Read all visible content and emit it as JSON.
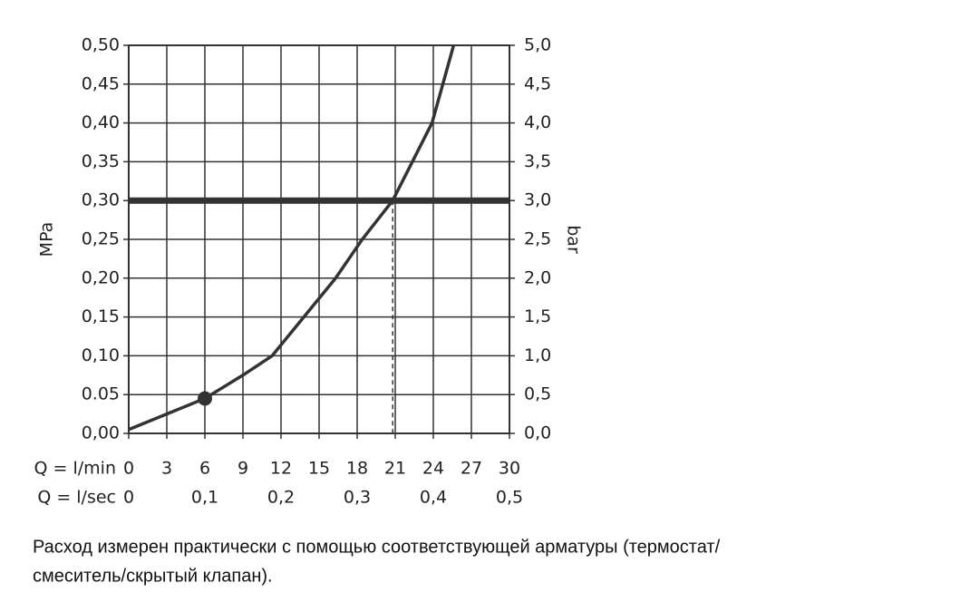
{
  "chart_data": {
    "type": "line",
    "ylabel": "MPa",
    "y2label": "bar",
    "xlabel": "Q = l/min",
    "x2label": "Q = l/sec",
    "xlim": [
      0,
      30
    ],
    "xticks": [
      0,
      3,
      6,
      9,
      12,
      15,
      18,
      21,
      24,
      27,
      30
    ],
    "x2lim": [
      0,
      0.5
    ],
    "x2ticks": [
      0,
      {
        "value": 0.1,
        "label": "0,1"
      },
      {
        "value": 0.2,
        "label": "0,2"
      },
      {
        "value": 0.3,
        "label": "0,3"
      },
      {
        "value": 0.4,
        "label": "0,4"
      },
      {
        "value": 0.5,
        "label": "0,5"
      }
    ],
    "ylim": [
      0,
      0.5
    ],
    "yticks": [
      {
        "value": 0,
        "label": "0,00"
      },
      {
        "value": 0.05,
        "label": "0.05"
      },
      {
        "value": 0.1,
        "label": "0,10"
      },
      {
        "value": 0.15,
        "label": "0,15"
      },
      {
        "value": 0.2,
        "label": "0,20"
      },
      {
        "value": 0.25,
        "label": "0,25"
      },
      {
        "value": 0.3,
        "label": "0,30"
      },
      {
        "value": 0.35,
        "label": "0,35"
      },
      {
        "value": 0.4,
        "label": "0,40"
      },
      {
        "value": 0.45,
        "label": "0,45"
      },
      {
        "value": 0.5,
        "label": "0,50"
      }
    ],
    "y2lim": [
      0,
      5
    ],
    "y2ticks": [
      {
        "value": 0,
        "label": "0,0"
      },
      {
        "value": 0.5,
        "label": "0,5"
      },
      {
        "value": 1,
        "label": "1,0"
      },
      {
        "value": 1.5,
        "label": "1,5"
      },
      {
        "value": 2,
        "label": "2,0"
      },
      {
        "value": 2.5,
        "label": "2,5"
      },
      {
        "value": 3,
        "label": "3,0"
      },
      {
        "value": 3.5,
        "label": "3,5"
      },
      {
        "value": 4,
        "label": "4,0"
      },
      {
        "value": 4.5,
        "label": "4,5"
      },
      {
        "value": 5,
        "label": "5,0"
      }
    ],
    "grid": true,
    "series": [
      {
        "color": "#333333",
        "x": [
          0,
          3,
          6,
          9,
          11.3,
          13.8,
          16.3,
          18.4,
          20.8,
          23.9,
          25.6
        ],
        "values": [
          0.005,
          0.025,
          0.045,
          0.075,
          0.1,
          0.15,
          0.2,
          0.25,
          0.3,
          0.4,
          0.5
        ]
      }
    ],
    "marker": {
      "x": 6,
      "y": 0.045
    },
    "reference": {
      "y": 0.3,
      "x": 20.8
    },
    "caption": [
      "Расход измерен практически с помощью соответствующей арматуры (термостат/",
      "смеситель/скрытый клапан)."
    ]
  }
}
